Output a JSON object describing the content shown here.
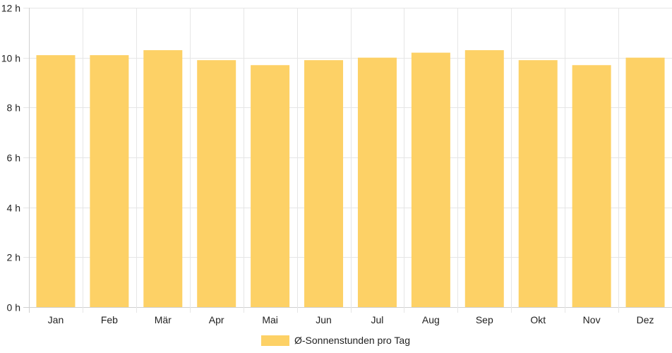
{
  "chart_data": {
    "type": "bar",
    "categories": [
      "Jan",
      "Feb",
      "Mär",
      "Apr",
      "Mai",
      "Jun",
      "Jul",
      "Aug",
      "Sep",
      "Okt",
      "Nov",
      "Dez"
    ],
    "series": [
      {
        "name": "Ø-Sonnenstunden pro Tag",
        "values": [
          10.1,
          10.1,
          10.3,
          9.9,
          9.7,
          9.9,
          10.0,
          10.2,
          10.3,
          9.9,
          9.7,
          10.0
        ],
        "color": "#fdd166"
      }
    ],
    "y_ticks": [
      "0 h",
      "2 h",
      "4 h",
      "6 h",
      "8 h",
      "10 h",
      "12 h"
    ],
    "ylim": [
      0,
      12
    ],
    "grid": true,
    "legend_position": "bottom-center"
  }
}
